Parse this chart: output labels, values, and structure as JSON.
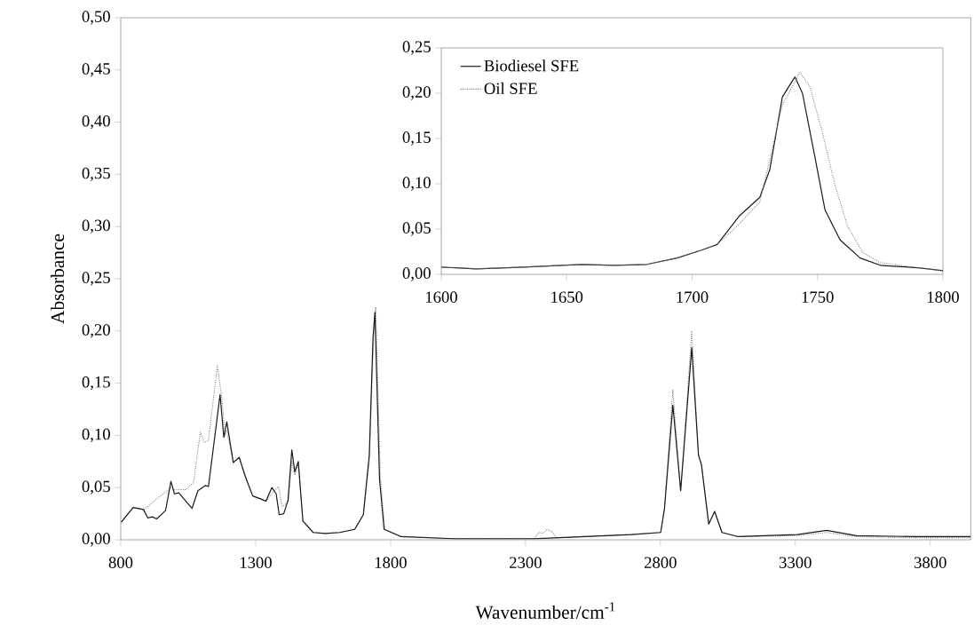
{
  "chart_data": [
    {
      "type": "line",
      "xlabel": "Wavenumber/cm$^{-1}$",
      "ylabel": "Absorbance",
      "xlim": [
        800,
        3950
      ],
      "ylim": [
        0,
        0.5
      ],
      "xticks": [
        800,
        1300,
        1800,
        2300,
        2800,
        3300,
        3800
      ],
      "yticks": [
        {
          "value": 0,
          "label": "0,00"
        },
        {
          "value": 0.05,
          "label": "0,05"
        },
        {
          "value": 0.1,
          "label": "0,10"
        },
        {
          "value": 0.15,
          "label": "0,15"
        },
        {
          "value": 0.2,
          "label": "0,20"
        },
        {
          "value": 0.25,
          "label": "0,25"
        },
        {
          "value": 0.3,
          "label": "0,30"
        },
        {
          "value": 0.35,
          "label": "0,35"
        },
        {
          "value": 0.4,
          "label": "0,40"
        },
        {
          "value": 0.45,
          "label": "0,45"
        },
        {
          "value": 0.5,
          "label": "0,50"
        }
      ],
      "series": [
        {
          "color": "#808080",
          "line_style": "dotted",
          "x": [
            802,
            846,
            884,
            900,
            933,
            977,
            986,
            999,
            1042,
            1070,
            1095,
            1110,
            1125,
            1158,
            1174,
            1187,
            1193,
            1217,
            1239,
            1261,
            1289,
            1320,
            1338,
            1362,
            1385,
            1398,
            1420,
            1434,
            1445,
            1458,
            1475,
            1513,
            1557,
            1612,
            1667,
            1699,
            1721,
            1738,
            1745,
            1762,
            1779,
            1839,
            2036,
            2331,
            2350,
            2364,
            2380,
            2397,
            2415,
            2692,
            2801,
            2815,
            2846,
            2875,
            2916,
            2941,
            2952,
            2979,
            3001,
            3028,
            3088,
            3307,
            3416,
            3526,
            3745,
            3950
          ],
          "values": [
            0.017,
            0.031,
            0.029,
            0.032,
            0.039,
            0.048,
            0.05,
            0.048,
            0.048,
            0.055,
            0.103,
            0.093,
            0.095,
            0.167,
            0.137,
            0.1,
            0.105,
            0.074,
            0.079,
            0.061,
            0.042,
            0.039,
            0.037,
            0.045,
            0.051,
            0.032,
            0.036,
            0.075,
            0.062,
            0.072,
            0.018,
            0.007,
            0.006,
            0.007,
            0.01,
            0.024,
            0.075,
            0.2,
            0.223,
            0.06,
            0.01,
            0.003,
            0.001,
            0.001,
            0.007,
            0.006,
            0.01,
            0.008,
            0.002,
            0.005,
            0.007,
            0.03,
            0.144,
            0.047,
            0.2,
            0.081,
            0.072,
            0.015,
            0.028,
            0.007,
            0.003,
            0.004,
            0.007,
            0.003,
            0.002,
            0.002
          ]
        },
        {
          "color": "#1a1a1a",
          "line_style": "solid",
          "x": [
            802,
            846,
            884,
            900,
            917,
            933,
            966,
            986,
            999,
            1015,
            1064,
            1086,
            1114,
            1125,
            1152,
            1168,
            1182,
            1193,
            1217,
            1239,
            1261,
            1289,
            1320,
            1338,
            1360,
            1376,
            1387,
            1404,
            1420,
            1434,
            1445,
            1458,
            1475,
            1513,
            1557,
            1612,
            1667,
            1699,
            1721,
            1735,
            1742,
            1759,
            1776,
            1839,
            2036,
            2331,
            2692,
            2801,
            2815,
            2846,
            2875,
            2916,
            2941,
            2952,
            2979,
            3001,
            3028,
            3088,
            3307,
            3416,
            3526,
            3745,
            3950
          ],
          "values": [
            0.017,
            0.031,
            0.029,
            0.021,
            0.022,
            0.02,
            0.028,
            0.056,
            0.044,
            0.045,
            0.03,
            0.047,
            0.052,
            0.051,
            0.106,
            0.139,
            0.098,
            0.113,
            0.074,
            0.079,
            0.061,
            0.042,
            0.039,
            0.037,
            0.05,
            0.044,
            0.024,
            0.025,
            0.038,
            0.086,
            0.065,
            0.075,
            0.018,
            0.007,
            0.006,
            0.007,
            0.01,
            0.024,
            0.081,
            0.194,
            0.218,
            0.058,
            0.01,
            0.003,
            0.001,
            0.001,
            0.005,
            0.007,
            0.03,
            0.129,
            0.047,
            0.184,
            0.081,
            0.072,
            0.015,
            0.027,
            0.007,
            0.003,
            0.005,
            0.009,
            0.004,
            0.003,
            0.003
          ]
        }
      ]
    },
    {
      "type": "line",
      "xlim": [
        1600,
        1800
      ],
      "ylim": [
        0,
        0.25
      ],
      "legend": "top left",
      "xticks": [
        1600,
        1650,
        1700,
        1750,
        1800
      ],
      "yticks": [
        {
          "value": 0,
          "label": "0,00"
        },
        {
          "value": 0.05,
          "label": "0,05"
        },
        {
          "value": 0.1,
          "label": "0,10"
        },
        {
          "value": 0.15,
          "label": "0,15"
        },
        {
          "value": 0.2,
          "label": "0,20"
        },
        {
          "value": 0.25,
          "label": "0,25"
        }
      ],
      "series": [
        {
          "name": "Biodiesel SFE",
          "color": "#1a1a1a",
          "line_style": "solid",
          "x": [
            1600,
            1614,
            1633,
            1656,
            1669,
            1682,
            1694,
            1704,
            1710,
            1719,
            1727,
            1731,
            1736,
            1741,
            1744,
            1749,
            1753,
            1759,
            1767,
            1775,
            1791,
            1800
          ],
          "values": [
            0.008,
            0.006,
            0.008,
            0.011,
            0.01,
            0.011,
            0.018,
            0.027,
            0.033,
            0.065,
            0.085,
            0.116,
            0.196,
            0.218,
            0.2,
            0.129,
            0.071,
            0.038,
            0.018,
            0.01,
            0.007,
            0.004
          ]
        },
        {
          "name": "Oil SFE",
          "color": "#808080",
          "line_style": "dotted",
          "x": [
            1600,
            1614,
            1633,
            1656,
            1669,
            1682,
            1694,
            1704,
            1710,
            1719,
            1727,
            1736,
            1743,
            1747,
            1752,
            1757,
            1762,
            1768,
            1775,
            1791,
            1800
          ],
          "values": [
            0.008,
            0.006,
            0.008,
            0.011,
            0.01,
            0.011,
            0.018,
            0.027,
            0.033,
            0.056,
            0.08,
            0.187,
            0.223,
            0.207,
            0.156,
            0.098,
            0.053,
            0.024,
            0.013,
            0.007,
            0.004
          ]
        }
      ]
    }
  ]
}
